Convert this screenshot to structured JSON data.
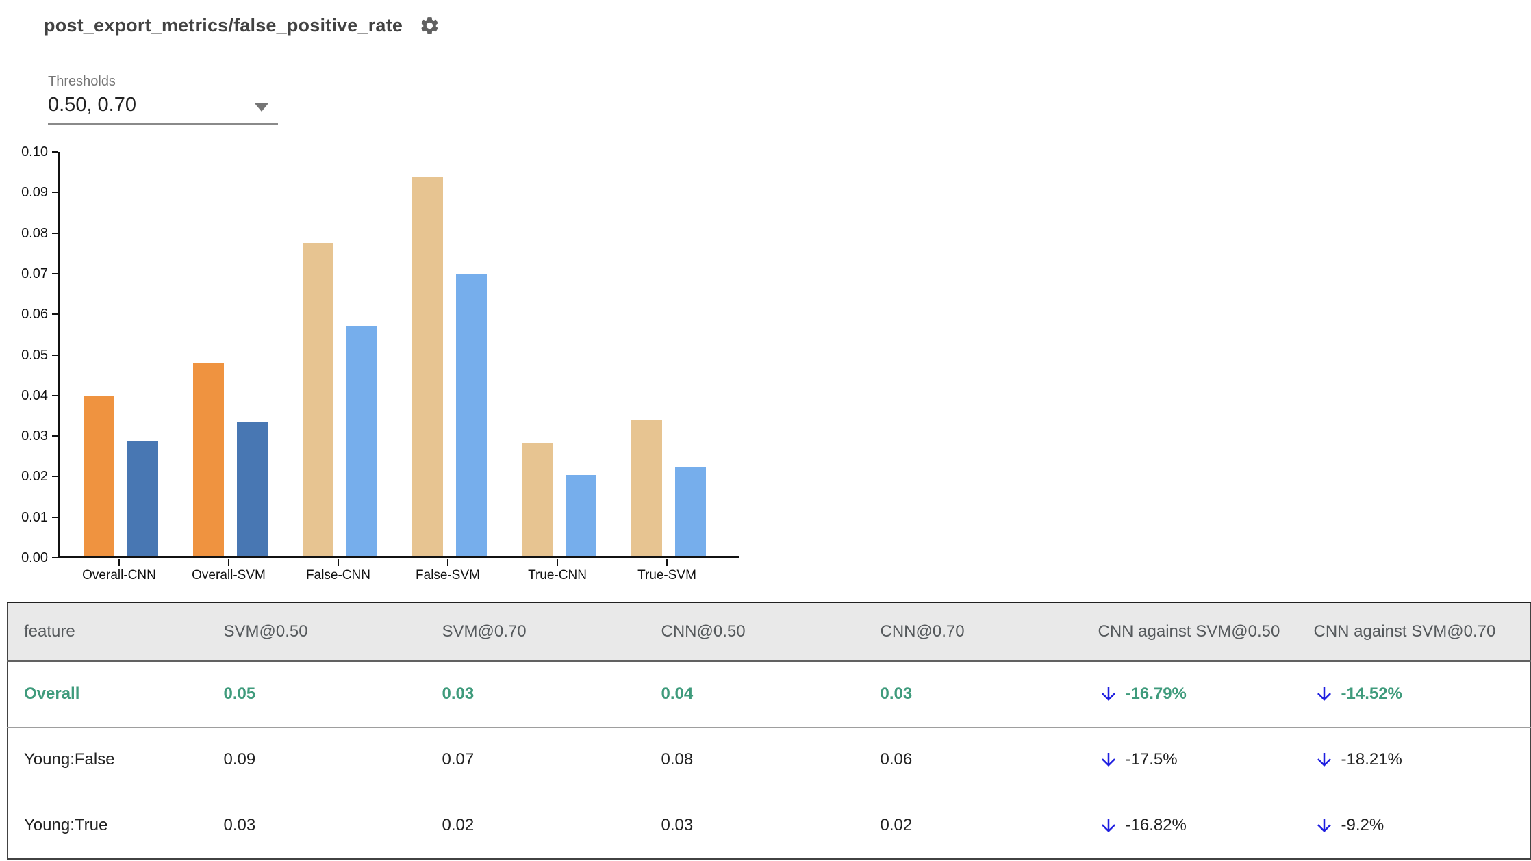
{
  "header": {
    "title": "post_export_metrics/false_positive_rate"
  },
  "thresholds": {
    "label": "Thresholds",
    "value": "0.50, 0.70"
  },
  "chart_data": {
    "type": "bar",
    "title": "",
    "xlabel": "",
    "ylabel": "",
    "ylim": [
      0,
      0.1
    ],
    "ytick_step": 0.01,
    "grid": false,
    "legend": "none",
    "categories": [
      "Overall-CNN",
      "Overall-SVM",
      "False-CNN",
      "False-SVM",
      "True-CNN",
      "True-SVM"
    ],
    "series": [
      {
        "name": "0.50",
        "values": [
          0.0397,
          0.0477,
          0.0772,
          0.0936,
          0.028,
          0.0337
        ],
        "colors": [
          "#ef9340",
          "#ef9340",
          "#e7c491",
          "#e7c491",
          "#e7c491",
          "#e7c491"
        ]
      },
      {
        "name": "0.70",
        "values": [
          0.0283,
          0.0331,
          0.0568,
          0.0694,
          0.02,
          0.022
        ],
        "colors": [
          "#4877b3",
          "#4877b3",
          "#76aeec",
          "#76aeec",
          "#76aeec",
          "#76aeec"
        ]
      }
    ]
  },
  "table": {
    "columns": [
      "feature",
      "SVM@0.50",
      "SVM@0.70",
      "CNN@0.50",
      "CNN@0.70",
      "CNN against SVM@0.50",
      "CNN against SVM@0.70"
    ],
    "rows": [
      {
        "feature": "Overall",
        "svm050": "0.05",
        "svm070": "0.03",
        "cnn050": "0.04",
        "cnn070": "0.03",
        "cmp050": "-16.79%",
        "cmp070": "-14.52%"
      },
      {
        "feature": "Young:False",
        "svm050": "0.09",
        "svm070": "0.07",
        "cnn050": "0.08",
        "cnn070": "0.06",
        "cmp050": "-17.5%",
        "cmp070": "-18.21%"
      },
      {
        "feature": "Young:True",
        "svm050": "0.03",
        "svm070": "0.02",
        "cnn050": "0.03",
        "cnn070": "0.02",
        "cmp050": "-16.82%",
        "cmp070": "-9.2%"
      }
    ]
  },
  "colors": {
    "orange": "#ef9340",
    "dark_blue": "#4877b3",
    "tan": "#e7c491",
    "light_blue": "#76aeec",
    "highlight_green": "#3f9b7c",
    "arrow_blue": "#1f1fe0",
    "header_bg": "#e9e9e9"
  }
}
